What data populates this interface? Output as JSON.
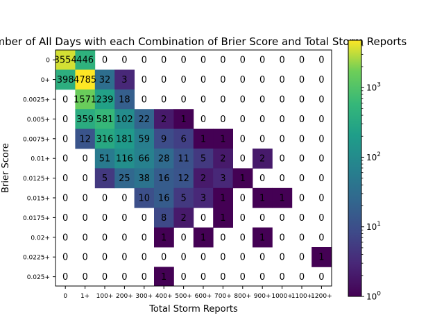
{
  "chart_data": {
    "type": "heatmap",
    "title": "Number of All Days with each Combination of Brier Score and Total Storm Reports",
    "xlabel": "Total Storm Reports",
    "ylabel": "Brier Score",
    "x_categories": [
      "0",
      "1+",
      "100+",
      "200+",
      "300+",
      "400+",
      "500+",
      "600+",
      "700+",
      "800+",
      "900+",
      "1000+",
      "1100+",
      "1200+"
    ],
    "y_categories": [
      "0",
      "0+",
      "0.0025+",
      "0.005+",
      "0.0075+",
      "0.01+",
      "0.0125+",
      "0.015+",
      "0.0175+",
      "0.02+",
      "0.0225+",
      "0.025+"
    ],
    "values": [
      [
        3554,
        446,
        0,
        0,
        0,
        0,
        0,
        0,
        0,
        0,
        0,
        0,
        0,
        0
      ],
      [
        398,
        4785,
        32,
        3,
        0,
        0,
        0,
        0,
        0,
        0,
        0,
        0,
        0,
        0
      ],
      [
        0,
        1571,
        239,
        18,
        0,
        0,
        0,
        0,
        0,
        0,
        0,
        0,
        0,
        0
      ],
      [
        0,
        359,
        581,
        102,
        22,
        2,
        1,
        0,
        0,
        0,
        0,
        0,
        0,
        0
      ],
      [
        0,
        12,
        316,
        181,
        59,
        9,
        6,
        1,
        1,
        0,
        0,
        0,
        0,
        0
      ],
      [
        0,
        0,
        51,
        116,
        66,
        28,
        11,
        5,
        2,
        0,
        2,
        0,
        0,
        0
      ],
      [
        0,
        0,
        5,
        25,
        38,
        16,
        12,
        2,
        3,
        1,
        0,
        0,
        0,
        0
      ],
      [
        0,
        0,
        0,
        0,
        10,
        16,
        5,
        3,
        1,
        0,
        1,
        1,
        0,
        0
      ],
      [
        0,
        0,
        0,
        0,
        0,
        8,
        2,
        0,
        1,
        0,
        0,
        0,
        0,
        0
      ],
      [
        0,
        0,
        0,
        0,
        0,
        1,
        0,
        1,
        0,
        0,
        1,
        0,
        0,
        0
      ],
      [
        0,
        0,
        0,
        0,
        0,
        0,
        0,
        0,
        0,
        0,
        0,
        0,
        0,
        1
      ],
      [
        0,
        0,
        0,
        0,
        0,
        1,
        0,
        0,
        0,
        0,
        0,
        0,
        0,
        0
      ]
    ],
    "colorbar": {
      "scale": "log",
      "colormap": "viridis",
      "range": [
        1,
        4785
      ],
      "tick_labels": [
        "10^0",
        "10^1",
        "10^2",
        "10^3"
      ],
      "tick_values": [
        1,
        10,
        100,
        1000
      ]
    },
    "zero_cells_colored": false,
    "cell_labels_shown": true,
    "grid": false
  }
}
